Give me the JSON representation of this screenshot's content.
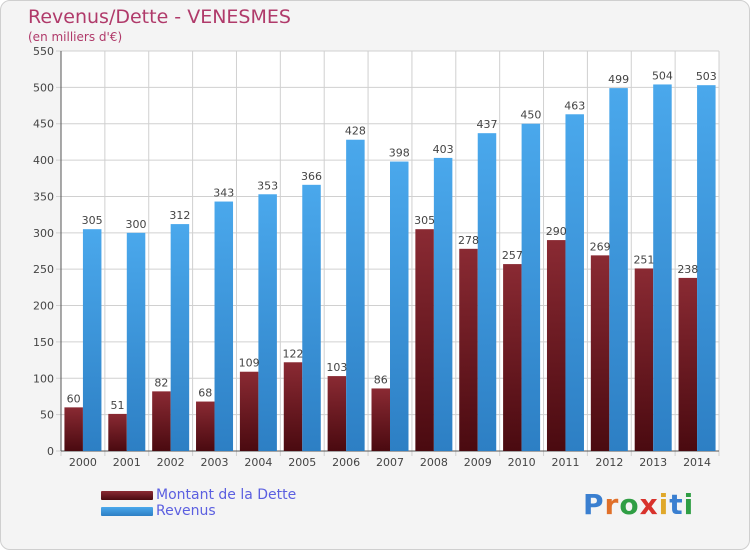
{
  "chart_data": {
    "type": "bar",
    "title": "Revenus/Dette - VENESMES",
    "subtitle": "(en milliers d'€)",
    "categories": [
      "2000",
      "2001",
      "2002",
      "2003",
      "2004",
      "2005",
      "2006",
      "2007",
      "2008",
      "2009",
      "2010",
      "2011",
      "2012",
      "2013",
      "2014"
    ],
    "series": [
      {
        "name": "Montant de la Dette",
        "color": "#7a1c24",
        "values": [
          60,
          51,
          82,
          68,
          109,
          122,
          103,
          86,
          305,
          278,
          257,
          290,
          269,
          251,
          238
        ]
      },
      {
        "name": "Revenus",
        "color": "#3f9ee6",
        "values": [
          305,
          300,
          312,
          343,
          353,
          366,
          428,
          398,
          403,
          437,
          450,
          463,
          499,
          504,
          503
        ]
      }
    ],
    "ylim": [
      0,
      550
    ],
    "yticks": [
      0,
      50,
      100,
      150,
      200,
      250,
      300,
      350,
      400,
      450,
      500,
      550
    ],
    "grid": true,
    "legend": "bottom-left"
  },
  "logo": {
    "text": "Proxiti"
  }
}
